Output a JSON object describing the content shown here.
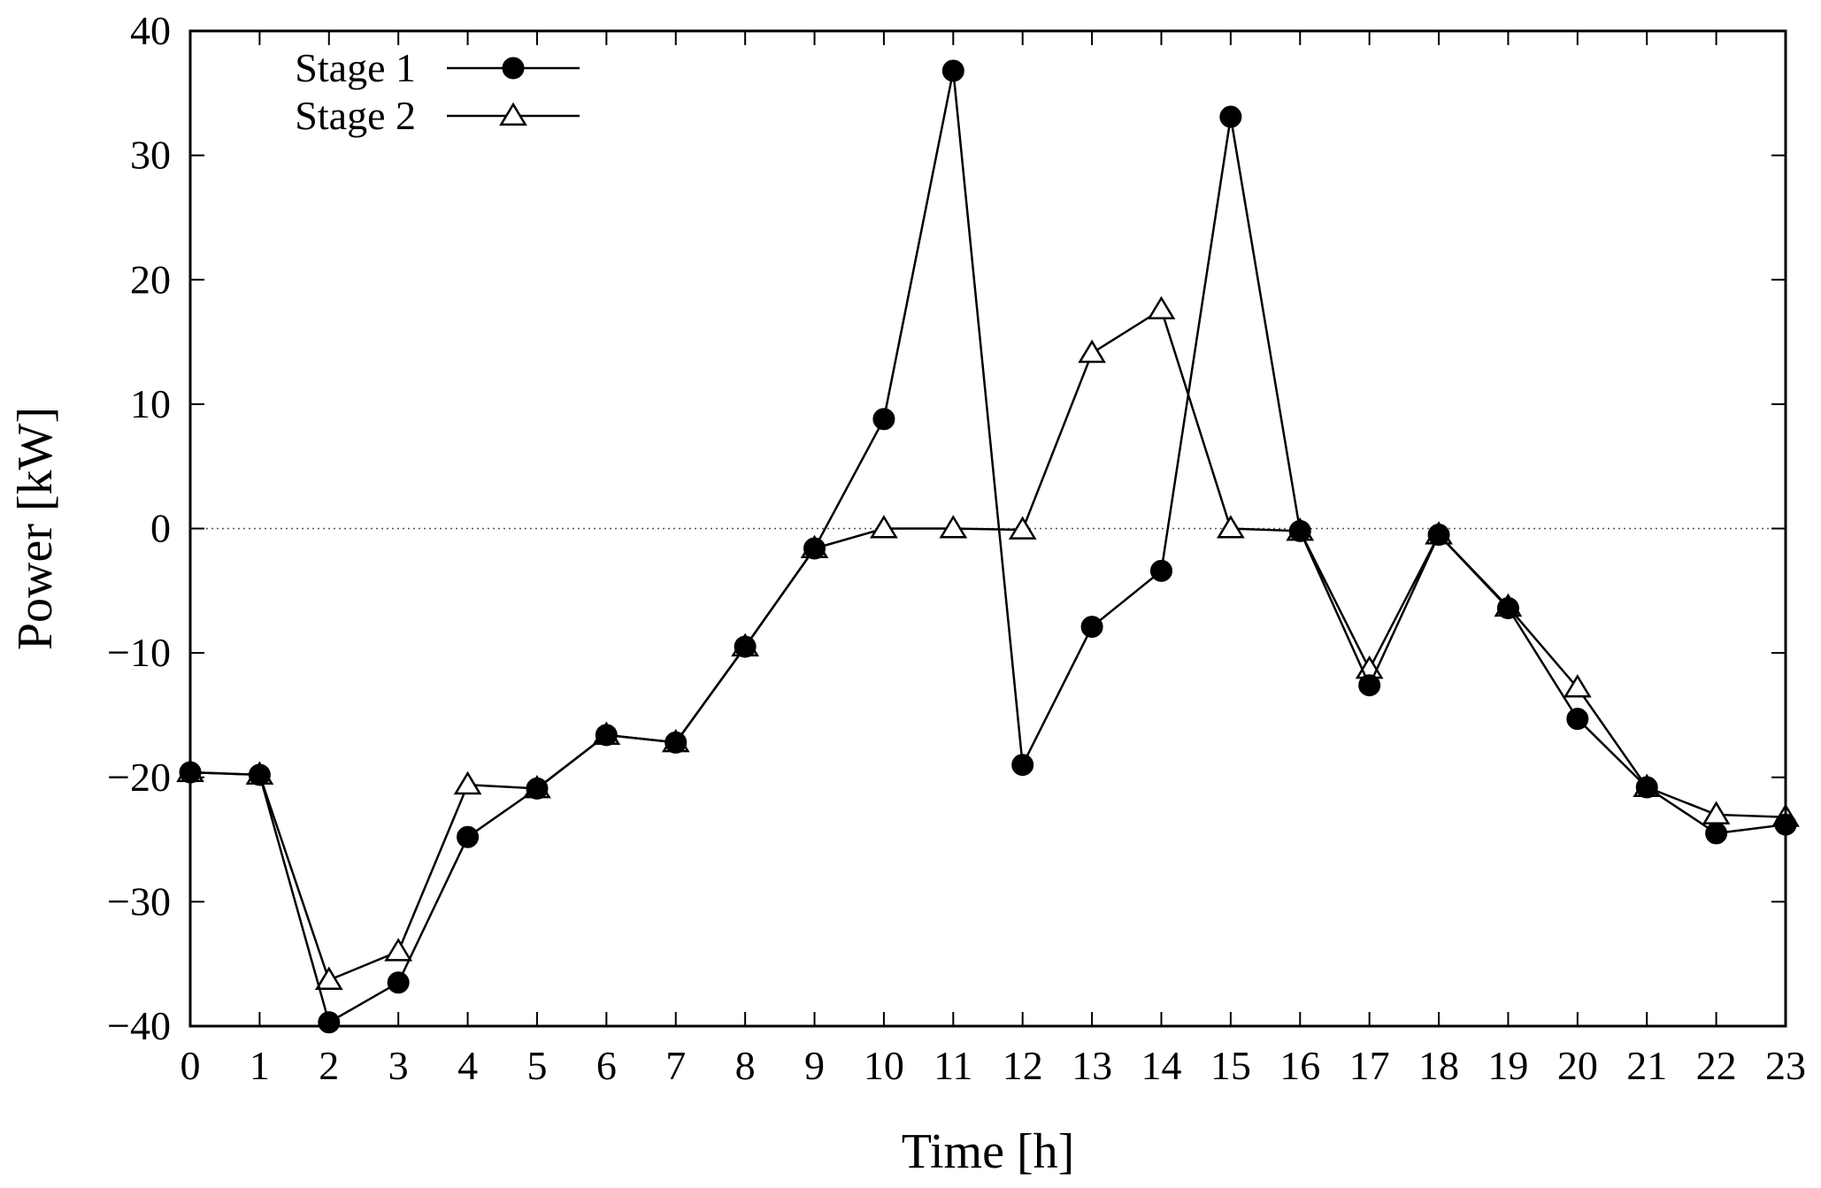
{
  "chart_data": {
    "type": "line",
    "title": "",
    "xlabel": "Time [h]",
    "ylabel": "Power [kW]",
    "xlim": [
      0,
      23
    ],
    "ylim": [
      -40,
      40
    ],
    "x_ticks": [
      "0",
      "1",
      "2",
      "3",
      "4",
      "5",
      "6",
      "7",
      "8",
      "9",
      "10",
      "11",
      "12",
      "13",
      "14",
      "15",
      "16",
      "17",
      "18",
      "19",
      "20",
      "21",
      "22",
      "23"
    ],
    "y_ticks": [
      "40",
      "30",
      "20",
      "10",
      "0",
      "−10",
      "−20",
      "−30",
      "−40"
    ],
    "grid": false,
    "zero_line": "dotted",
    "legend_position": "top-left",
    "x": [
      0,
      1,
      2,
      3,
      4,
      5,
      6,
      7,
      8,
      9,
      10,
      11,
      12,
      13,
      14,
      15,
      16,
      17,
      18,
      19,
      20,
      21,
      22,
      23
    ],
    "series": [
      {
        "name": "Stage 1",
        "marker": "filled-circle",
        "color": "#000000",
        "values": [
          -19.6,
          -19.8,
          -39.7,
          -36.5,
          -24.8,
          -20.9,
          -16.6,
          -17.2,
          -9.5,
          -1.6,
          8.8,
          36.8,
          -19.0,
          -7.9,
          -3.4,
          33.1,
          -0.2,
          -12.6,
          -0.5,
          -6.4,
          -15.3,
          -20.8,
          -24.5,
          -23.8
        ]
      },
      {
        "name": "Stage 2",
        "marker": "open-triangle",
        "color": "#000000",
        "values": [
          -19.6,
          -19.8,
          -36.3,
          -34.0,
          -20.6,
          -20.9,
          -16.6,
          -17.2,
          -9.5,
          -1.6,
          0.0,
          0.0,
          -0.1,
          14.1,
          17.6,
          0.0,
          -0.2,
          -11.3,
          -0.5,
          -6.3,
          -12.8,
          -20.8,
          -23.0,
          -23.2
        ]
      }
    ]
  }
}
